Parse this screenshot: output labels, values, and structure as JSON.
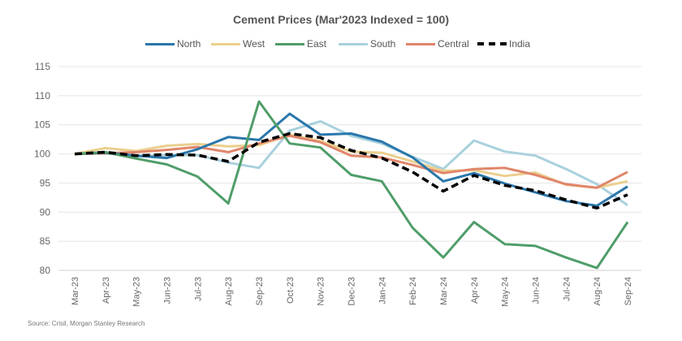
{
  "chart_data": {
    "type": "line",
    "title": "Cement Prices (Mar'2023 Indexed = 100)",
    "xlabel": "",
    "ylabel": "",
    "ylim": [
      80,
      115
    ],
    "yticks": [
      80,
      85,
      90,
      95,
      100,
      105,
      110,
      115
    ],
    "grid": true,
    "legend_position": "top-center",
    "categories": [
      "Mar-23",
      "Apr-23",
      "May-23",
      "Jun-23",
      "Jul-23",
      "Aug-23",
      "Sep-23",
      "Oct-23",
      "Nov-23",
      "Dec-23",
      "Jan-24",
      "Feb-24",
      "Mar-24",
      "Apr-24",
      "May-24",
      "Jun-24",
      "Jul-24",
      "Aug-24",
      "Sep-24"
    ],
    "series": [
      {
        "name": "North",
        "color": "#2a77ab",
        "dashed": false,
        "values": [
          100,
          100.2,
          99.7,
          99.3,
          100.8,
          102.9,
          102.4,
          106.9,
          103.3,
          103.5,
          102.1,
          99.4,
          95.3,
          96.7,
          94.9,
          93.4,
          91.9,
          91.1,
          94.4
        ]
      },
      {
        "name": "West",
        "color": "#ebcf8e",
        "dashed": false,
        "values": [
          100,
          101.0,
          100.5,
          101.4,
          101.7,
          101.3,
          101.5,
          103.3,
          102.2,
          100.4,
          100.2,
          98.7,
          97.1,
          97.2,
          96.2,
          96.8,
          94.7,
          94.2,
          95.3
        ]
      },
      {
        "name": "East",
        "color": "#4f9d69",
        "dashed": false,
        "values": [
          100,
          100.3,
          99.2,
          98.2,
          96.1,
          91.5,
          109.0,
          101.8,
          101.1,
          96.4,
          95.3,
          87.3,
          82.2,
          88.3,
          84.5,
          84.2,
          82.2,
          80.4,
          88.3
        ]
      },
      {
        "name": "South",
        "color": "#a9d1dd",
        "dashed": false,
        "values": [
          100,
          100.1,
          99.6,
          99.8,
          99.8,
          98.5,
          97.6,
          104.0,
          105.6,
          103.1,
          101.8,
          99.5,
          97.4,
          102.3,
          100.4,
          99.7,
          97.4,
          94.8,
          91.2
        ]
      },
      {
        "name": "Central",
        "color": "#e0866a",
        "dashed": false,
        "values": [
          100,
          100.1,
          100.3,
          100.7,
          101.2,
          100.3,
          101.8,
          103.1,
          102.0,
          99.7,
          99.4,
          98.1,
          96.7,
          97.4,
          97.6,
          96.4,
          94.8,
          94.2,
          96.9
        ]
      },
      {
        "name": "India",
        "color": "#000000",
        "dashed": true,
        "values": [
          100,
          100.3,
          99.7,
          99.9,
          99.8,
          98.7,
          102.0,
          103.5,
          102.8,
          100.6,
          99.3,
          96.9,
          93.6,
          96.3,
          94.6,
          93.7,
          92.1,
          90.7,
          93.0
        ]
      }
    ],
    "source": "Source: Crisil, Morgan Stanley Research"
  }
}
